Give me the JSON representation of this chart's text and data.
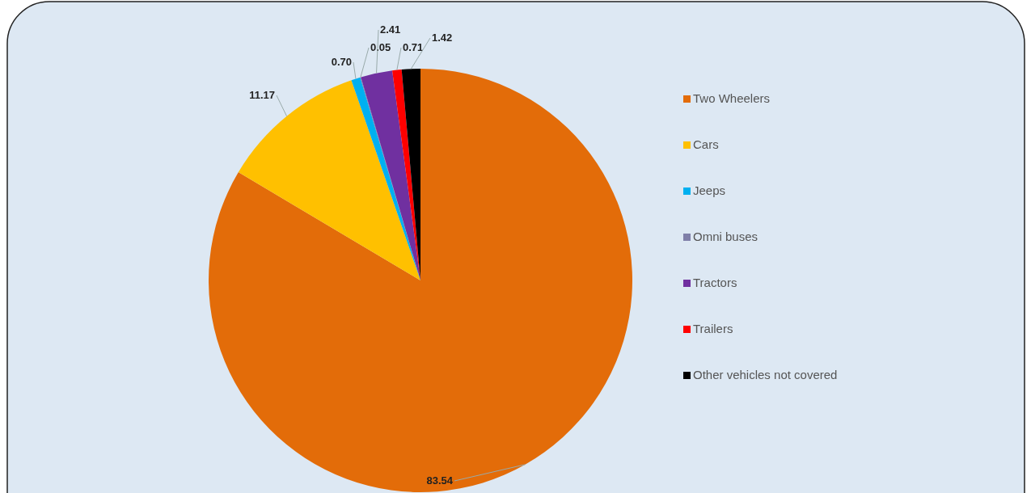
{
  "chart_data": {
    "type": "pie",
    "categories": [
      "Two Wheelers",
      "Cars",
      "Jeeps",
      "Omni buses",
      "Tractors",
      "Trailers",
      "Other vehicles not covered"
    ],
    "values": [
      83.54,
      11.17,
      0.7,
      0.05,
      2.41,
      0.71,
      1.42
    ],
    "colors": [
      "#e36c09",
      "#ffc000",
      "#00b0f0",
      "#7f7fa8",
      "#7030a0",
      "#ff0000",
      "#000000"
    ],
    "value_labels": [
      "83.54",
      "11.17",
      "0.70",
      "0.05",
      "2.41",
      "0.71",
      "1.42"
    ],
    "legend": "right"
  }
}
